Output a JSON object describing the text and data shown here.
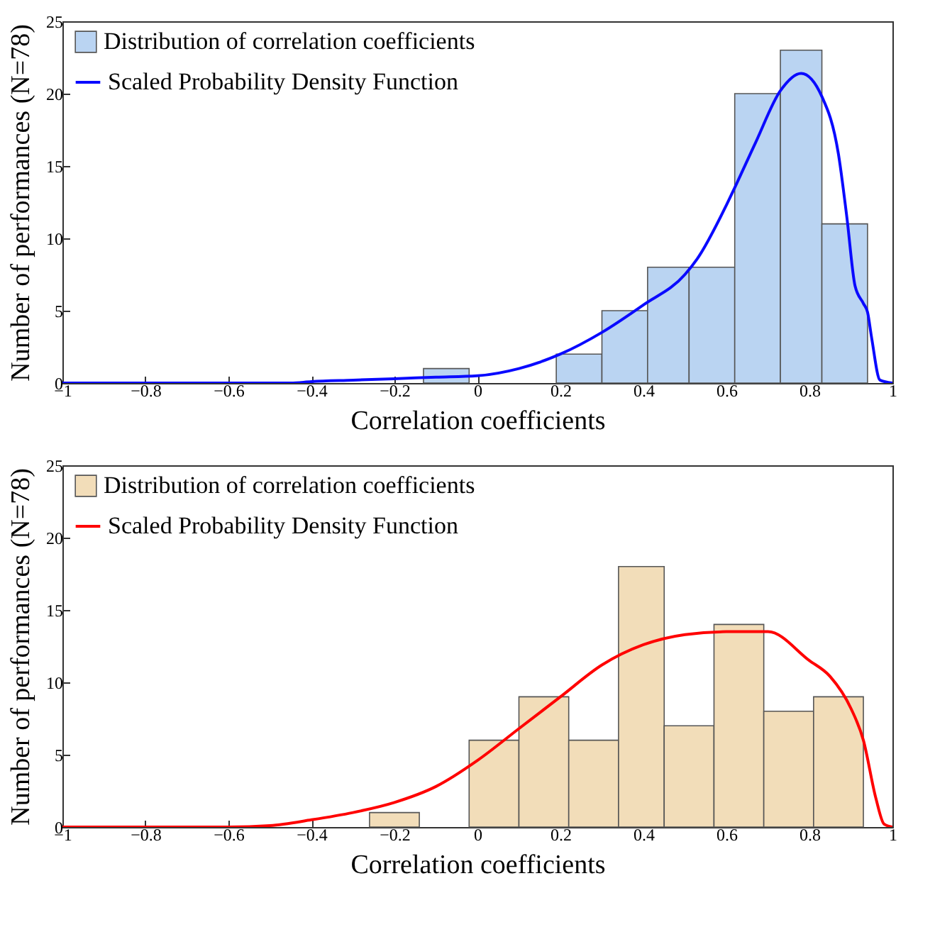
{
  "chart_data": [
    {
      "type": "histogram",
      "xlabel": "Correlation coefficients",
      "ylabel": "Number of performances (N=78)",
      "xlim": [
        -1,
        1
      ],
      "ylim": [
        0,
        25
      ],
      "xticks": [
        -1,
        -0.8,
        -0.6,
        -0.4,
        -0.2,
        0,
        0.2,
        0.4,
        0.6,
        0.8,
        1
      ],
      "yticks": [
        0,
        5,
        10,
        15,
        20,
        25
      ],
      "grid": false,
      "legend": "top left",
      "bins": [
        -0.13,
        -0.02,
        0.19,
        0.3,
        0.41,
        0.51,
        0.62,
        0.73,
        0.83,
        0.94
      ],
      "series": [
        {
          "name": "Distribution of correlation coefficients",
          "type": "histogram",
          "color": "#bad4f2",
          "values": [
            1,
            0,
            2,
            5,
            8,
            8,
            20,
            23,
            11
          ]
        },
        {
          "name": "Scaled Probability Density Function",
          "type": "line",
          "color": "#0a0aff",
          "x": [
            -1,
            -0.8,
            -0.6,
            -0.45,
            -0.4,
            -0.3,
            -0.2,
            -0.1,
            0,
            0.1,
            0.2,
            0.3,
            0.4,
            0.5,
            0.53,
            0.6,
            0.62,
            0.67,
            0.73,
            0.78,
            0.83,
            0.87,
            0.89,
            0.91,
            0.93,
            0.94,
            0.95,
            0.97,
            1
          ],
          "values": [
            0,
            0,
            0,
            0,
            0.1,
            0.2,
            0.3,
            0.4,
            0.5,
            1,
            2,
            3.5,
            5.4,
            7.5,
            8.6,
            12.3,
            13.5,
            16.6,
            20.2,
            21.4,
            19.8,
            15.8,
            11.5,
            6.7,
            5.5,
            4.9,
            3.1,
            0.2,
            0
          ]
        }
      ]
    },
    {
      "type": "histogram",
      "xlabel": "Correlation coefficients",
      "ylabel": "Number of performances (N=78)",
      "xlim": [
        -1,
        1
      ],
      "ylim": [
        0,
        25
      ],
      "xticks": [
        -1,
        -0.8,
        -0.6,
        -0.4,
        -0.2,
        0,
        0.2,
        0.4,
        0.6,
        0.8,
        1
      ],
      "yticks": [
        0,
        5,
        10,
        15,
        20,
        25
      ],
      "grid": false,
      "legend": "top left",
      "bins": [
        -0.26,
        -0.14,
        -0.02,
        0.1,
        0.22,
        0.34,
        0.45,
        0.57,
        0.69,
        0.81,
        0.93
      ],
      "series": [
        {
          "name": "Distribution of correlation coefficients",
          "type": "histogram",
          "color": "#f2ddb9",
          "values": [
            1,
            0,
            6,
            9,
            6,
            18,
            7,
            14,
            8,
            9
          ]
        },
        {
          "name": "Scaled Probability Density Function",
          "type": "line",
          "color": "#ff0000",
          "x": [
            -1,
            -0.8,
            -0.6,
            -0.5,
            -0.4,
            -0.3,
            -0.2,
            -0.1,
            0,
            0.1,
            0.2,
            0.3,
            0.4,
            0.5,
            0.6,
            0.7,
            0.8,
            0.85,
            0.9,
            0.93,
            0.96,
            0.98,
            1
          ],
          "values": [
            0,
            0,
            0,
            0.1,
            0.5,
            1,
            1.7,
            2.8,
            4.6,
            6.8,
            9,
            11.2,
            12.6,
            13.3,
            13.5,
            13.5,
            11.5,
            10.4,
            8.2,
            6,
            2,
            0.2,
            0
          ]
        }
      ]
    }
  ]
}
